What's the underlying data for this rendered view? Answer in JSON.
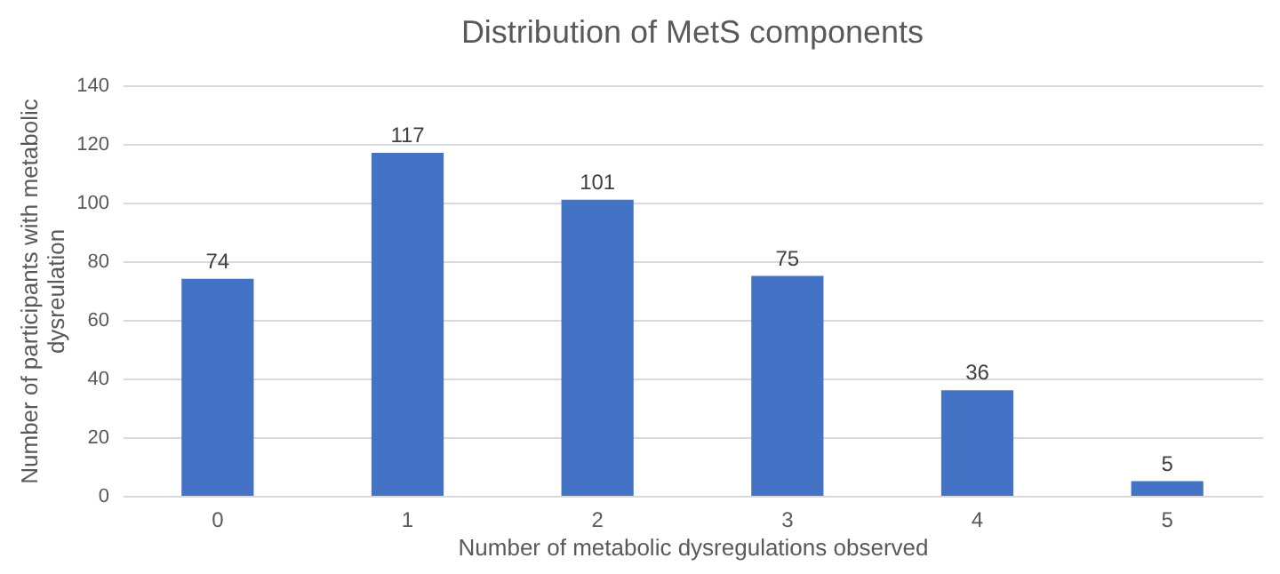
{
  "chart_data": {
    "type": "bar",
    "title": "Distribution of MetS components",
    "xlabel": "Number of metabolic dysregulations observed",
    "ylabel": "Number of participants with metabolic dysreulation",
    "categories": [
      "0",
      "1",
      "2",
      "3",
      "4",
      "5"
    ],
    "values": [
      74,
      117,
      101,
      75,
      36,
      5
    ],
    "color": "#4472c4",
    "ylim": [
      0,
      140
    ],
    "yticks": [
      0,
      20,
      40,
      60,
      80,
      100,
      120,
      140
    ],
    "grid": "y",
    "data_labels": true
  }
}
